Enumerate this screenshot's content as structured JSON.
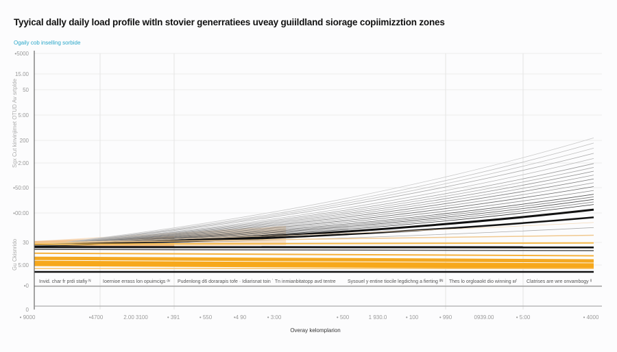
{
  "title": "Tyyical dally daily load profile  witln stovier generratiees uveay guiildland siorage copiimizztion zones",
  "subtitle": "Ogaily cob inselling sorbide",
  "chart_data": {
    "type": "line",
    "title": "Tyyical dally daily load profile  witln stovier generratiees uveay guiildland siorage copiimizztion zones",
    "xlabel": "Overay kelomplarion",
    "ylabel": "Sgx Cut kinvinjimet OTUD Av srtplde",
    "ylabel2": "Gu Ckisnrido",
    "x_ticks": [
      "• 9000",
      "•4700",
      "2.00 3100",
      "• 391",
      "• 550",
      "•4 90",
      "• 3:00",
      "• 500",
      "1 930.0",
      "• 100",
      "• 990",
      "0939.00",
      "• 5:00",
      "• 4000"
    ],
    "y_ticks": [
      "•5000",
      "15.00",
      "50",
      "5:00",
      "200",
      "2:00",
      "•50:00",
      "•00:00",
      "30",
      "5:00",
      "•0",
      "0"
    ],
    "ylim": [
      0,
      100
    ],
    "x": [
      0,
      0.5,
      1
    ],
    "grid": true,
    "zones": [
      "Invid. char fr prdi stafiy ᴺ",
      "Ioernioe errass lon opuimcigs ᵈᵛ",
      "Pudenlong d6 dorarapis tofe ·  Idiarisnat toin ˙  Tn inmianbitatopp avd tentre",
      "Sysouel y entine tiocile legdichng a fierting ᴵᴵᴺ",
      "Thes lo orgloaokt dio winning ιιιᶠ",
      "Clatrises are wre onvambogy ᴵᴵ"
    ],
    "series": [
      {
        "values": [
          25,
          38,
          67
        ],
        "color": "#c8c8c8"
      },
      {
        "values": [
          25,
          37,
          65
        ],
        "color": "#bdbdbd"
      },
      {
        "values": [
          25,
          36.5,
          63
        ],
        "color": "#c0c0c0"
      },
      {
        "values": [
          25,
          36,
          61
        ],
        "color": "#a8a8a8"
      },
      {
        "values": [
          25,
          35,
          59
        ],
        "color": "#b5b5b5"
      },
      {
        "values": [
          25,
          34.5,
          57
        ],
        "color": "#999999"
      },
      {
        "values": [
          25,
          34,
          55.5
        ],
        "color": "#aaaaaa"
      },
      {
        "values": [
          25,
          33.5,
          54
        ],
        "color": "#8a8a8a"
      },
      {
        "values": [
          25,
          33,
          52.5
        ],
        "color": "#9a9a9a"
      },
      {
        "values": [
          25,
          32.5,
          51
        ],
        "color": "#777777"
      },
      {
        "values": [
          25,
          32,
          49.5
        ],
        "color": "#999999"
      },
      {
        "values": [
          25,
          31.5,
          48
        ],
        "color": "#666666"
      },
      {
        "values": [
          25,
          31,
          46.5
        ],
        "color": "#888888"
      },
      {
        "values": [
          25,
          30.5,
          45
        ],
        "color": "#555555"
      },
      {
        "values": [
          25,
          30,
          44
        ],
        "color": "#777777"
      },
      {
        "values": [
          25,
          29.5,
          43
        ],
        "color": "#4a4a4a"
      },
      {
        "values": [
          25,
          29,
          42
        ],
        "color": "#888888"
      },
      {
        "values": [
          25,
          28.5,
          41
        ],
        "color": "#333333"
      },
      {
        "values": [
          25,
          28,
          39
        ],
        "color": "#111111",
        "width": 3
      },
      {
        "values": [
          25,
          27.5,
          36
        ],
        "color": "#111111",
        "width": 2.5
      },
      {
        "values": [
          25,
          27,
          32
        ],
        "color": "#aaaaaa"
      },
      {
        "values": [
          26,
          29,
          34
        ],
        "color": "#f3d9b8"
      },
      {
        "values": [
          26,
          27.5,
          29
        ],
        "color": "#f0c88e",
        "width": 1.5
      },
      {
        "values": [
          25.5,
          25.8,
          26
        ],
        "color": "#f5b94a",
        "width": 2
      },
      {
        "values": [
          24.4,
          24.3,
          24.3
        ],
        "color": "#111111",
        "width": 3
      },
      {
        "values": [
          23.5,
          23.2,
          23
        ],
        "color": "#555555",
        "width": 1.5
      },
      {
        "values": [
          22,
          21.5,
          21
        ],
        "color": "#f6b13a",
        "width": 2
      },
      {
        "values": [
          20,
          19.5,
          19
        ],
        "color": "#f4a922",
        "width": 5
      },
      {
        "values": [
          18,
          17.5,
          17
        ],
        "color": "#f7a81b",
        "width": 8
      },
      {
        "values": [
          16,
          16,
          16
        ],
        "color": "#f8c36a",
        "width": 1.5
      },
      {
        "values": [
          14.7,
          14.7,
          14.7
        ],
        "color": "#111111",
        "width": 2.5
      }
    ]
  }
}
